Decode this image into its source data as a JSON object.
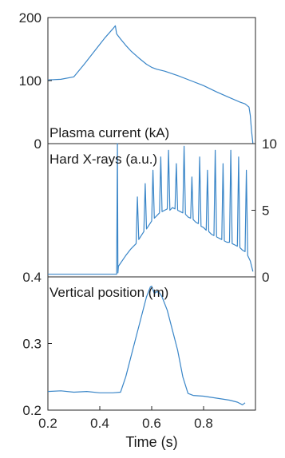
{
  "chart_data": [
    {
      "type": "line",
      "title": "Plasma current (kA)",
      "xlabel": "",
      "ylabel": "",
      "xlim": [
        0.2,
        1.0
      ],
      "ylim": [
        0,
        200
      ],
      "y_ticks": [
        "0",
        "100",
        "200"
      ],
      "y_axis_side": "left",
      "color": "#3a86c8",
      "series": [
        {
          "x": [
            0.2,
            0.25,
            0.3,
            0.34,
            0.38,
            0.42,
            0.45,
            0.46,
            0.465,
            0.48,
            0.5,
            0.52,
            0.55,
            0.58,
            0.6,
            0.62,
            0.65,
            0.7,
            0.75,
            0.8,
            0.85,
            0.9,
            0.94,
            0.96,
            0.975,
            0.98,
            0.985,
            0.99
          ],
          "y": [
            101,
            102,
            106,
            126,
            147,
            168,
            182,
            187,
            174,
            166,
            156,
            147,
            136,
            126,
            121,
            118,
            115,
            108,
            100,
            92,
            82,
            73,
            66,
            63,
            58,
            45,
            20,
            0
          ]
        }
      ]
    },
    {
      "type": "line",
      "title": "Hard X-rays (a.u.)",
      "xlabel": "",
      "ylabel": "",
      "xlim": [
        0.2,
        1.0
      ],
      "ylim": [
        0,
        10
      ],
      "y_ticks": [
        "0",
        "5",
        "10"
      ],
      "y_axis_side": "right",
      "color": "#3a86c8",
      "series": [
        {
          "x": [
            0.2,
            0.3,
            0.4,
            0.465,
            0.468,
            0.47,
            0.472,
            0.5,
            0.52,
            0.54,
            0.545,
            0.55,
            0.56,
            0.57,
            0.575,
            0.58,
            0.59,
            0.6,
            0.605,
            0.61,
            0.62,
            0.63,
            0.635,
            0.64,
            0.65,
            0.66,
            0.665,
            0.67,
            0.68,
            0.69,
            0.695,
            0.7,
            0.71,
            0.72,
            0.725,
            0.73,
            0.74,
            0.75,
            0.755,
            0.76,
            0.77,
            0.78,
            0.785,
            0.79,
            0.8,
            0.81,
            0.815,
            0.82,
            0.83,
            0.84,
            0.845,
            0.85,
            0.86,
            0.87,
            0.875,
            0.88,
            0.89,
            0.9,
            0.905,
            0.91,
            0.92,
            0.93,
            0.935,
            0.94,
            0.95,
            0.96,
            0.965,
            0.97,
            0.98,
            0.99
          ],
          "y": [
            0.2,
            0.2,
            0.2,
            0.2,
            10,
            0.3,
            0.8,
            1.6,
            2.1,
            2.5,
            6.0,
            2.8,
            3.1,
            3.4,
            7.0,
            3.6,
            3.9,
            4.2,
            8.0,
            4.4,
            4.6,
            4.8,
            9.0,
            4.9,
            5.0,
            5.1,
            9.5,
            5.0,
            5.2,
            5.1,
            8.5,
            5.0,
            4.9,
            4.8,
            9.8,
            4.7,
            4.5,
            4.4,
            7.5,
            4.3,
            4.1,
            4.0,
            9.0,
            3.8,
            3.7,
            3.5,
            8.0,
            3.4,
            3.2,
            3.1,
            9.5,
            3.0,
            2.9,
            2.8,
            8.5,
            2.7,
            2.6,
            2.6,
            9.5,
            2.5,
            2.4,
            2.3,
            9.0,
            2.2,
            2.0,
            1.9,
            8.0,
            1.6,
            1.2,
            0.4
          ]
        }
      ]
    },
    {
      "type": "line",
      "title": "Vertical position (m)",
      "xlabel": "Time (s)",
      "ylabel": "",
      "xlim": [
        0.2,
        1.0
      ],
      "ylim": [
        0.2,
        0.4
      ],
      "y_ticks": [
        "0.2",
        "0.3",
        "0.4"
      ],
      "x_ticks": [
        "0.2",
        "0.4",
        "0.6",
        "0.8"
      ],
      "y_axis_side": "left",
      "color": "#3a86c8",
      "series": [
        {
          "x": [
            0.2,
            0.25,
            0.3,
            0.35,
            0.4,
            0.45,
            0.48,
            0.5,
            0.52,
            0.54,
            0.56,
            0.58,
            0.595,
            0.6,
            0.61,
            0.62,
            0.63,
            0.64,
            0.66,
            0.68,
            0.7,
            0.72,
            0.74,
            0.76,
            0.8,
            0.85,
            0.9,
            0.93,
            0.95,
            0.96
          ],
          "y": [
            0.228,
            0.229,
            0.227,
            0.228,
            0.226,
            0.226,
            0.227,
            0.25,
            0.28,
            0.31,
            0.34,
            0.37,
            0.385,
            0.386,
            0.375,
            0.378,
            0.376,
            0.37,
            0.35,
            0.32,
            0.29,
            0.25,
            0.225,
            0.222,
            0.221,
            0.218,
            0.215,
            0.212,
            0.208,
            0.211
          ]
        }
      ]
    }
  ]
}
